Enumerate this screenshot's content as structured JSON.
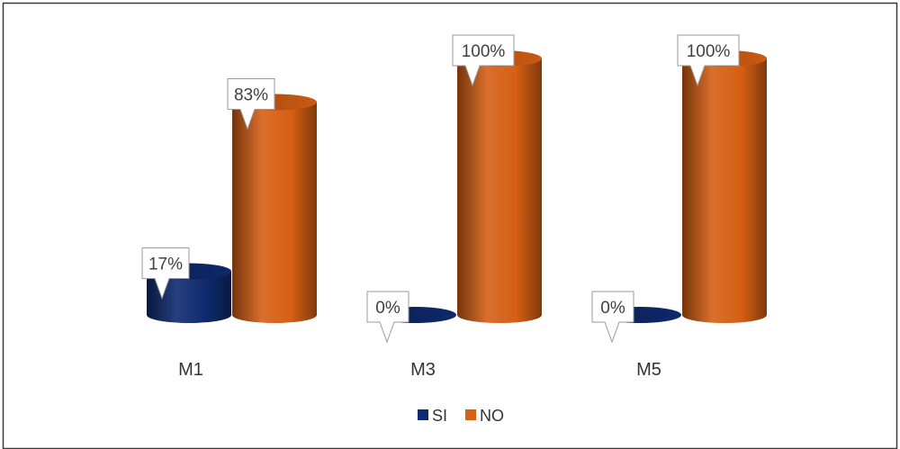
{
  "chart_data": {
    "type": "bar",
    "style": "3d-cylinder",
    "categories": [
      "M1",
      "M3",
      "M5"
    ],
    "series": [
      {
        "name": "SI",
        "values": [
          17,
          0,
          0
        ],
        "labels": [
          "17%",
          "0%",
          "0%"
        ],
        "color": "#0f2a6e"
      },
      {
        "name": "NO",
        "values": [
          83,
          100,
          100
        ],
        "labels": [
          "83%",
          "100%",
          "100%"
        ],
        "color": "#d55f14"
      }
    ],
    "ylim": [
      0,
      100
    ],
    "grid": false,
    "legend_position": "bottom",
    "title": "",
    "xlabel": "",
    "ylabel": ""
  },
  "colors": {
    "border": "#3a3a3a",
    "callout_border": "#9a9a9a",
    "callout_fill": "#ffffff"
  }
}
